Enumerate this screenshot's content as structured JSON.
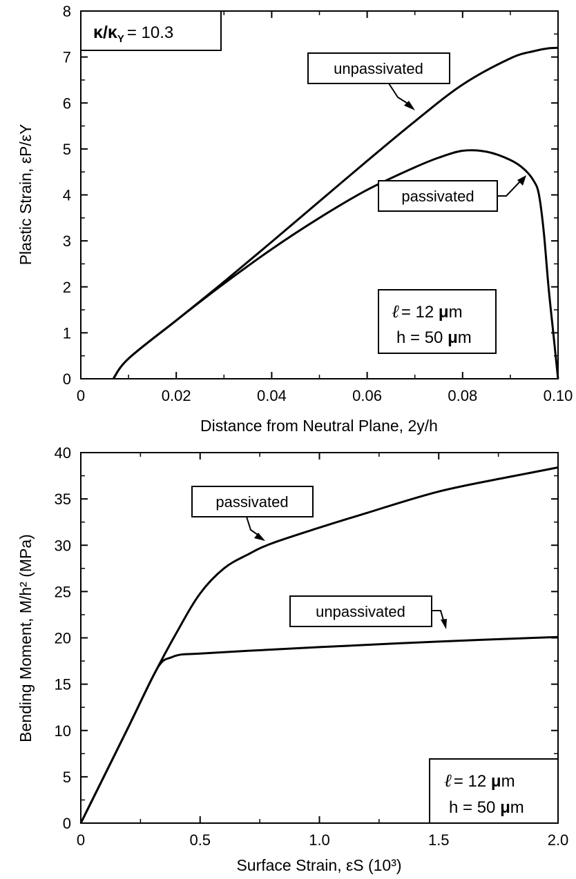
{
  "chart_data": [
    {
      "type": "line",
      "xlabel": "Distance from Neutral Plane,  2y/h",
      "ylabel": "Plastic Strain, εP/εY",
      "xlim": [
        0,
        0.1
      ],
      "ylim": [
        0,
        8
      ],
      "xticks": [
        "0",
        "0.02",
        "0.04",
        "0.06",
        "0.08",
        "0.10"
      ],
      "yticks": [
        "0",
        "1",
        "2",
        "3",
        "4",
        "5",
        "6",
        "7",
        "8"
      ],
      "grid": false,
      "annotations": {
        "kappa": {
          "main": "κ/κ",
          "sub": "Y",
          "value": "= 10.3"
        },
        "params": {
          "ell_sym": "ℓ",
          "ell_val": "= 12 ",
          "mu": "μ",
          "m": "m",
          "h_val": "h = 50 ",
          "h_mu": "μ",
          "h_m": "m"
        }
      },
      "series": [
        {
          "name": "unpassivated",
          "x": [
            0.0068,
            0.01,
            0.02,
            0.03,
            0.04,
            0.05,
            0.06,
            0.07,
            0.08,
            0.09,
            0.095,
            0.098,
            0.1
          ],
          "y": [
            0,
            0.44,
            1.27,
            2.11,
            2.98,
            3.86,
            4.74,
            5.6,
            6.4,
            6.97,
            7.13,
            7.19,
            7.2
          ]
        },
        {
          "name": "passivated",
          "x": [
            0.0068,
            0.01,
            0.02,
            0.03,
            0.04,
            0.05,
            0.06,
            0.07,
            0.075,
            0.08,
            0.085,
            0.09,
            0.093,
            0.095,
            0.096,
            0.097,
            0.098,
            0.099,
            0.1
          ],
          "y": [
            0,
            0.44,
            1.27,
            2.07,
            2.82,
            3.5,
            4.11,
            4.6,
            4.81,
            4.96,
            4.94,
            4.76,
            4.55,
            4.29,
            4.0,
            3.2,
            2.0,
            1.0,
            0
          ]
        }
      ]
    },
    {
      "type": "line",
      "xlabel": "Surface Strain, εS (10³)",
      "ylabel": "Bending Moment,  M/h² (MPa)",
      "xlim": [
        0,
        2
      ],
      "ylim": [
        0,
        40
      ],
      "xticks": [
        "0",
        "0.5",
        "1.0",
        "1.5",
        "2.0"
      ],
      "yticks": [
        "0",
        "5",
        "10",
        "15",
        "20",
        "25",
        "30",
        "35",
        "40"
      ],
      "grid": false,
      "annotations": {
        "params": {
          "ell_sym": "ℓ",
          "ell_val": "= 12 ",
          "mu": "μ",
          "m": "m",
          "h_val": "h = 50 ",
          "h_mu": "μ",
          "h_m": "m"
        }
      },
      "series": [
        {
          "name": "passivated",
          "x": [
            0,
            0.1,
            0.2,
            0.3,
            0.4,
            0.5,
            0.6,
            0.7,
            0.8,
            1.0,
            1.2,
            1.5,
            1.8,
            2.0
          ],
          "y": [
            0,
            5.2,
            10.4,
            15.7,
            20.5,
            24.8,
            27.5,
            29.0,
            30.2,
            31.9,
            33.5,
            35.8,
            37.4,
            38.4
          ]
        },
        {
          "name": "unpassivated",
          "x": [
            0,
            0.1,
            0.2,
            0.3,
            0.34,
            0.38,
            0.42,
            0.5,
            0.7,
            1.0,
            1.5,
            2.0
          ],
          "y": [
            0,
            5.2,
            10.4,
            15.7,
            17.4,
            17.9,
            18.2,
            18.3,
            18.6,
            19.0,
            19.6,
            20.1
          ]
        }
      ]
    }
  ]
}
